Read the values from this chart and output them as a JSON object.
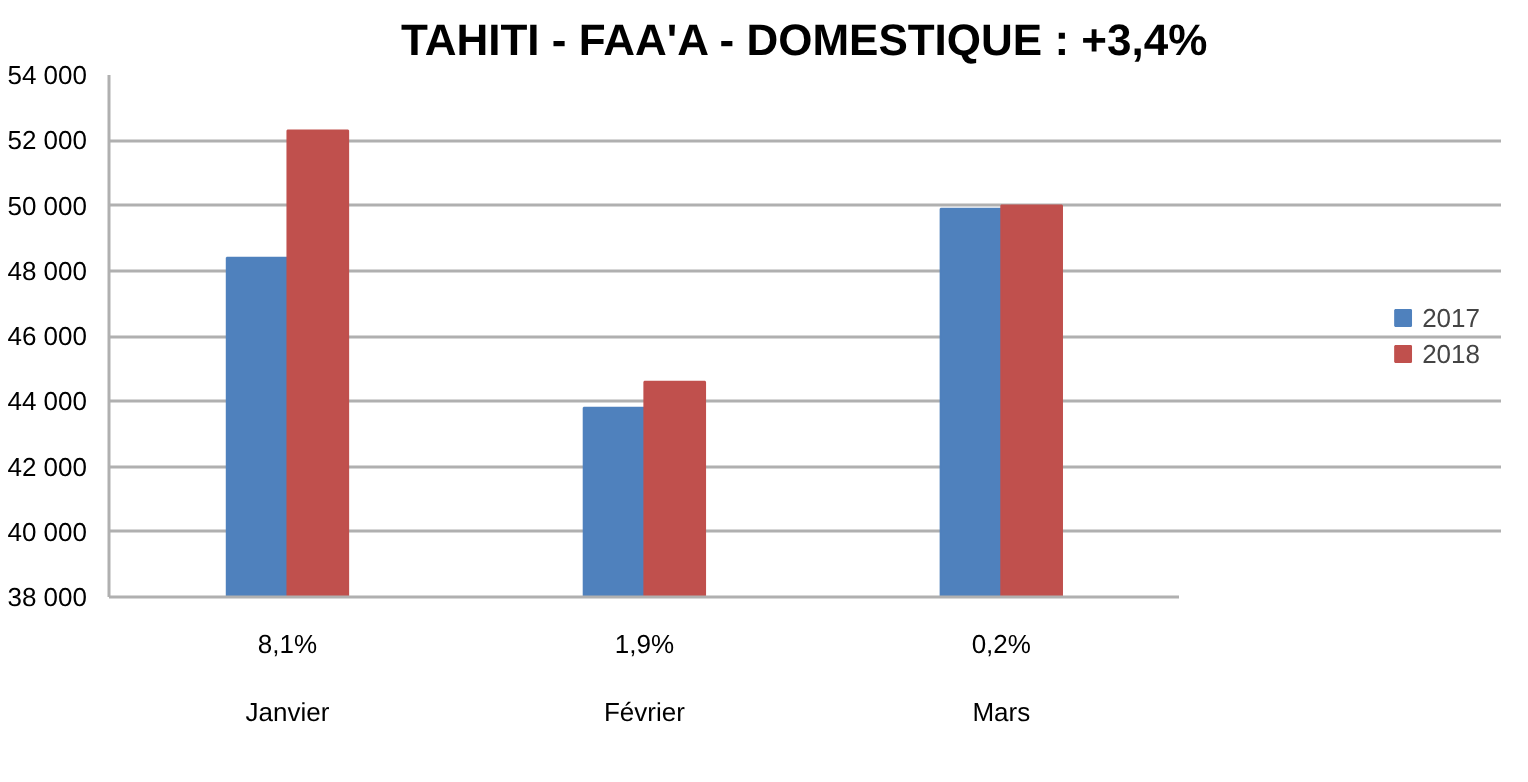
{
  "chart_data": {
    "type": "bar",
    "title": "TAHITI - FAA'A - DOMESTIQUE : +3,4%",
    "categories": [
      "Janvier",
      "Février",
      "Mars"
    ],
    "series": [
      {
        "name": "2017",
        "color": "#4f81bd",
        "values": [
          48400,
          43800,
          49900
        ]
      },
      {
        "name": "2018",
        "color": "#c0504d",
        "values": [
          52300,
          44600,
          50000
        ]
      }
    ],
    "ylim": [
      38000,
      54000
    ],
    "yticks": [
      {
        "value": 38000,
        "label": "38 000"
      },
      {
        "value": 40000,
        "label": "40 000"
      },
      {
        "value": 42000,
        "label": "42 000"
      },
      {
        "value": 44000,
        "label": "44 000"
      },
      {
        "value": 46000,
        "label": "46 000"
      },
      {
        "value": 48000,
        "label": "48 000"
      },
      {
        "value": 50000,
        "label": "50 000"
      },
      {
        "value": 52000,
        "label": "52 000"
      },
      {
        "value": 54000,
        "label": "54 000"
      }
    ],
    "grid": "y",
    "legend": "right",
    "annotations": [
      "8,1%",
      "1,9%",
      "0,2%"
    ]
  }
}
